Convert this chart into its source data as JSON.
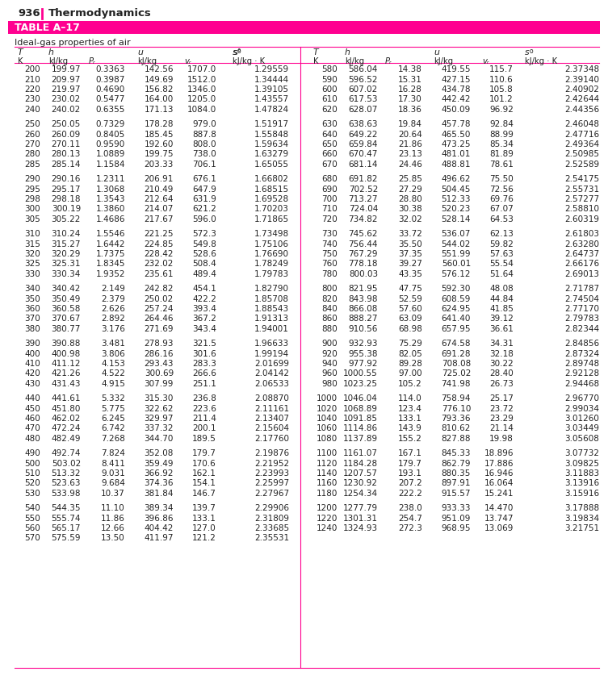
{
  "page_num": "936",
  "page_title": "Thermodynamics",
  "table_label": "TABLE A–17",
  "subtitle": "Ideal-gas properties of air",
  "accent_color": "#FF0090",
  "text_color": "#222222",
  "bg_color": "#FFFFFF",
  "left_data": [
    [
      200,
      199.97,
      "0.3363",
      142.56,
      "1707.0",
      "1.29559"
    ],
    [
      210,
      209.97,
      "0.3987",
      149.69,
      "1512.0",
      "1.34444"
    ],
    [
      220,
      219.97,
      "0.4690",
      156.82,
      "1346.0",
      "1.39105"
    ],
    [
      230,
      230.02,
      "0.5477",
      164.0,
      "1205.0",
      "1.43557"
    ],
    [
      240,
      240.02,
      "0.6355",
      171.13,
      "1084.0",
      "1.47824"
    ],
    [
      250,
      250.05,
      "0.7329",
      178.28,
      "979.0",
      "1.51917"
    ],
    [
      260,
      260.09,
      "0.8405",
      185.45,
      "887.8",
      "1.55848"
    ],
    [
      270,
      270.11,
      "0.9590",
      192.6,
      "808.0",
      "1.59634"
    ],
    [
      280,
      280.13,
      "1.0889",
      199.75,
      "738.0",
      "1.63279"
    ],
    [
      285,
      285.14,
      "1.1584",
      203.33,
      "706.1",
      "1.65055"
    ],
    [
      290,
      290.16,
      "1.2311",
      206.91,
      "676.1",
      "1.66802"
    ],
    [
      295,
      295.17,
      "1.3068",
      210.49,
      "647.9",
      "1.68515"
    ],
    [
      298,
      298.18,
      "1.3543",
      212.64,
      "631.9",
      "1.69528"
    ],
    [
      300,
      300.19,
      "1.3860",
      214.07,
      "621.2",
      "1.70203"
    ],
    [
      305,
      305.22,
      "1.4686",
      217.67,
      "596.0",
      "1.71865"
    ],
    [
      310,
      310.24,
      "1.5546",
      221.25,
      "572.3",
      "1.73498"
    ],
    [
      315,
      315.27,
      "1.6442",
      224.85,
      "549.8",
      "1.75106"
    ],
    [
      320,
      320.29,
      "1.7375",
      228.42,
      "528.6",
      "1.76690"
    ],
    [
      325,
      325.31,
      "1.8345",
      232.02,
      "508.4",
      "1.78249"
    ],
    [
      330,
      330.34,
      "1.9352",
      235.61,
      "489.4",
      "1.79783"
    ],
    [
      340,
      340.42,
      "2.149",
      242.82,
      "454.1",
      "1.82790"
    ],
    [
      350,
      350.49,
      "2.379",
      250.02,
      "422.2",
      "1.85708"
    ],
    [
      360,
      360.58,
      "2.626",
      257.24,
      "393.4",
      "1.88543"
    ],
    [
      370,
      370.67,
      "2.892",
      264.46,
      "367.2",
      "1.91313"
    ],
    [
      380,
      380.77,
      "3.176",
      271.69,
      "343.4",
      "1.94001"
    ],
    [
      390,
      390.88,
      "3.481",
      278.93,
      "321.5",
      "1.96633"
    ],
    [
      400,
      400.98,
      "3.806",
      286.16,
      "301.6",
      "1.99194"
    ],
    [
      410,
      411.12,
      "4.153",
      293.43,
      "283.3",
      "2.01699"
    ],
    [
      420,
      421.26,
      "4.522",
      300.69,
      "266.6",
      "2.04142"
    ],
    [
      430,
      431.43,
      "4.915",
      307.99,
      "251.1",
      "2.06533"
    ],
    [
      440,
      441.61,
      "5.332",
      315.3,
      "236.8",
      "2.08870"
    ],
    [
      450,
      451.8,
      "5.775",
      322.62,
      "223.6",
      "2.11161"
    ],
    [
      460,
      462.02,
      "6.245",
      329.97,
      "211.4",
      "2.13407"
    ],
    [
      470,
      472.24,
      "6.742",
      337.32,
      "200.1",
      "2.15604"
    ],
    [
      480,
      482.49,
      "7.268",
      344.7,
      "189.5",
      "2.17760"
    ],
    [
      490,
      492.74,
      "7.824",
      352.08,
      "179.7",
      "2.19876"
    ],
    [
      500,
      503.02,
      "8.411",
      359.49,
      "170.6",
      "2.21952"
    ],
    [
      510,
      513.32,
      "9.031",
      366.92,
      "162.1",
      "2.23993"
    ],
    [
      520,
      523.63,
      "9.684",
      374.36,
      "154.1",
      "2.25997"
    ],
    [
      530,
      533.98,
      "10.37",
      381.84,
      "146.7",
      "2.27967"
    ],
    [
      540,
      544.35,
      "11.10",
      389.34,
      "139.7",
      "2.29906"
    ],
    [
      550,
      555.74,
      "11.86",
      396.86,
      "133.1",
      "2.31809"
    ],
    [
      560,
      565.17,
      "12.66",
      404.42,
      "127.0",
      "2.33685"
    ],
    [
      570,
      575.59,
      "13.50",
      411.97,
      "121.2",
      "2.35531"
    ]
  ],
  "right_data": [
    [
      580,
      586.04,
      "14.38",
      419.55,
      "115.7",
      "2.37348"
    ],
    [
      590,
      596.52,
      "15.31",
      427.15,
      "110.6",
      "2.39140"
    ],
    [
      600,
      607.02,
      "16.28",
      434.78,
      "105.8",
      "2.40902"
    ],
    [
      610,
      617.53,
      "17.30",
      442.42,
      "101.2",
      "2.42644"
    ],
    [
      620,
      628.07,
      "18.36",
      450.09,
      "96.92",
      "2.44356"
    ],
    [
      630,
      638.63,
      "19.84",
      457.78,
      "92.84",
      "2.46048"
    ],
    [
      640,
      649.22,
      "20.64",
      465.5,
      "88.99",
      "2.47716"
    ],
    [
      650,
      659.84,
      "21.86",
      473.25,
      "85.34",
      "2.49364"
    ],
    [
      660,
      670.47,
      "23.13",
      481.01,
      "81.89",
      "2.50985"
    ],
    [
      670,
      681.14,
      "24.46",
      488.81,
      "78.61",
      "2.52589"
    ],
    [
      680,
      691.82,
      "25.85",
      496.62,
      "75.50",
      "2.54175"
    ],
    [
      690,
      702.52,
      "27.29",
      504.45,
      "72.56",
      "2.55731"
    ],
    [
      700,
      713.27,
      "28.80",
      512.33,
      "69.76",
      "2.57277"
    ],
    [
      710,
      724.04,
      "30.38",
      520.23,
      "67.07",
      "2.58810"
    ],
    [
      720,
      734.82,
      "32.02",
      528.14,
      "64.53",
      "2.60319"
    ],
    [
      730,
      745.62,
      "33.72",
      536.07,
      "62.13",
      "2.61803"
    ],
    [
      740,
      756.44,
      "35.50",
      544.02,
      "59.82",
      "2.63280"
    ],
    [
      750,
      767.29,
      "37.35",
      551.99,
      "57.63",
      "2.64737"
    ],
    [
      760,
      778.18,
      "39.27",
      560.01,
      "55.54",
      "2.66176"
    ],
    [
      780,
      800.03,
      "43.35",
      576.12,
      "51.64",
      "2.69013"
    ],
    [
      800,
      821.95,
      "47.75",
      592.3,
      "48.08",
      "2.71787"
    ],
    [
      820,
      843.98,
      "52.59",
      608.59,
      "44.84",
      "2.74504"
    ],
    [
      840,
      866.08,
      "57.60",
      624.95,
      "41.85",
      "2.77170"
    ],
    [
      860,
      888.27,
      "63.09",
      641.4,
      "39.12",
      "2.79783"
    ],
    [
      880,
      910.56,
      "68.98",
      657.95,
      "36.61",
      "2.82344"
    ],
    [
      900,
      932.93,
      "75.29",
      674.58,
      "34.31",
      "2.84856"
    ],
    [
      920,
      955.38,
      "82.05",
      691.28,
      "32.18",
      "2.87324"
    ],
    [
      940,
      977.92,
      "89.28",
      708.08,
      "30.22",
      "2.89748"
    ],
    [
      960,
      1000.55,
      "97.00",
      725.02,
      "28.40",
      "2.92128"
    ],
    [
      980,
      1023.25,
      "105.2",
      741.98,
      "26.73",
      "2.94468"
    ],
    [
      1000,
      1046.04,
      "114.0",
      758.94,
      "25.17",
      "2.96770"
    ],
    [
      1020,
      1068.89,
      "123.4",
      776.1,
      "23.72",
      "2.99034"
    ],
    [
      1040,
      1091.85,
      "133.1",
      793.36,
      "23.29",
      "3.01260"
    ],
    [
      1060,
      1114.86,
      "143.9",
      810.62,
      "21.14",
      "3.03449"
    ],
    [
      1080,
      1137.89,
      "155.2",
      827.88,
      "19.98",
      "3.05608"
    ],
    [
      1100,
      1161.07,
      "167.1",
      845.33,
      "18.896",
      "3.07732"
    ],
    [
      1120,
      1184.28,
      "179.7",
      862.79,
      "17.886",
      "3.09825"
    ],
    [
      1140,
      1207.57,
      "193.1",
      880.35,
      "16.946",
      "3.11883"
    ],
    [
      1160,
      1230.92,
      "207.2",
      897.91,
      "16.064",
      "3.13916"
    ],
    [
      1180,
      1254.34,
      "222.2",
      915.57,
      "15.241",
      "3.15916"
    ],
    [
      1200,
      1277.79,
      "238.0",
      933.33,
      "14.470",
      "3.17888"
    ],
    [
      1220,
      1301.31,
      "254.7",
      951.09,
      "13.747",
      "3.19834"
    ],
    [
      1240,
      1324.93,
      "272.3",
      968.95,
      "13.069",
      "3.21751"
    ]
  ],
  "left_group_breaks": [
    4,
    9,
    14,
    19,
    24,
    29,
    34,
    39
  ],
  "right_group_breaks": [
    4,
    9,
    14,
    19,
    24,
    29,
    34,
    39
  ]
}
